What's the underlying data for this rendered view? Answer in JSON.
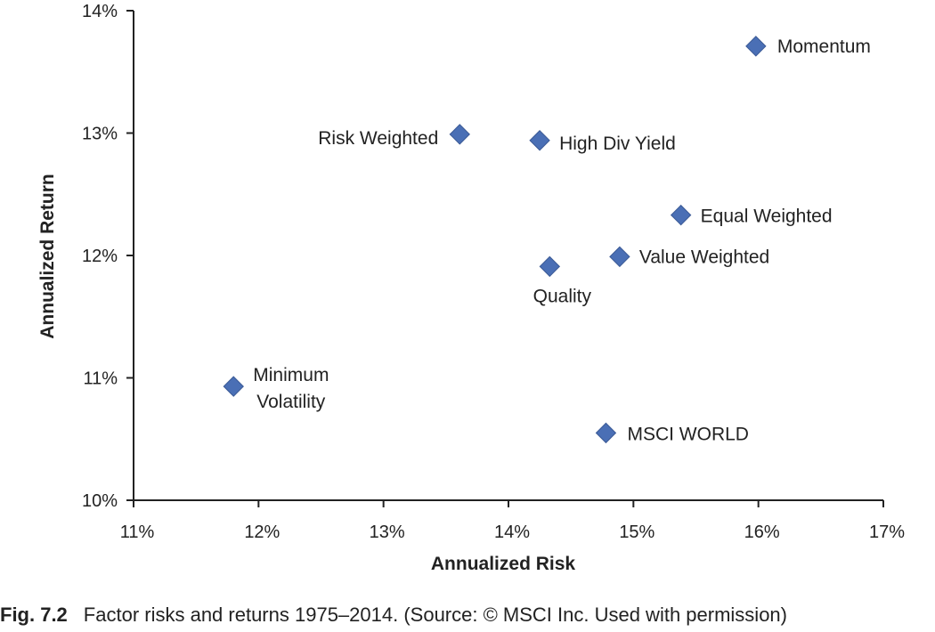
{
  "chart_data": {
    "type": "scatter",
    "title": "",
    "xlabel": "Annualized Risk",
    "ylabel": "Annualized Return",
    "xlim": [
      11,
      17
    ],
    "ylim": [
      10,
      14
    ],
    "x_ticks": [
      "11%",
      "12%",
      "13%",
      "14%",
      "15%",
      "16%",
      "17%"
    ],
    "y_ticks": [
      "10%",
      "11%",
      "12%",
      "13%",
      "14%"
    ],
    "grid": false,
    "marker": "diamond",
    "marker_color": "#4a6fb5",
    "points": [
      {
        "label": [
          "Momentum"
        ],
        "x": 15.98,
        "y": 13.71
      },
      {
        "label": [
          "Risk Weighted"
        ],
        "x": 13.61,
        "y": 12.99
      },
      {
        "label": [
          "High Div Yield"
        ],
        "x": 14.25,
        "y": 12.94
      },
      {
        "label": [
          "Equal Weighted"
        ],
        "x": 15.38,
        "y": 12.33
      },
      {
        "label": [
          "Value Weighted"
        ],
        "x": 14.89,
        "y": 11.99
      },
      {
        "label": [
          "Quality"
        ],
        "x": 14.33,
        "y": 11.91
      },
      {
        "label": [
          "Minimum",
          "Volatility"
        ],
        "x": 11.8,
        "y": 10.93
      },
      {
        "label": [
          "MSCI WORLD"
        ],
        "x": 14.78,
        "y": 10.55
      }
    ]
  },
  "caption": {
    "figure_label": "Fig. 7.2",
    "text": "Factor risks and returns 1975–2014. (Source: © MSCI Inc. Used with permission)"
  }
}
